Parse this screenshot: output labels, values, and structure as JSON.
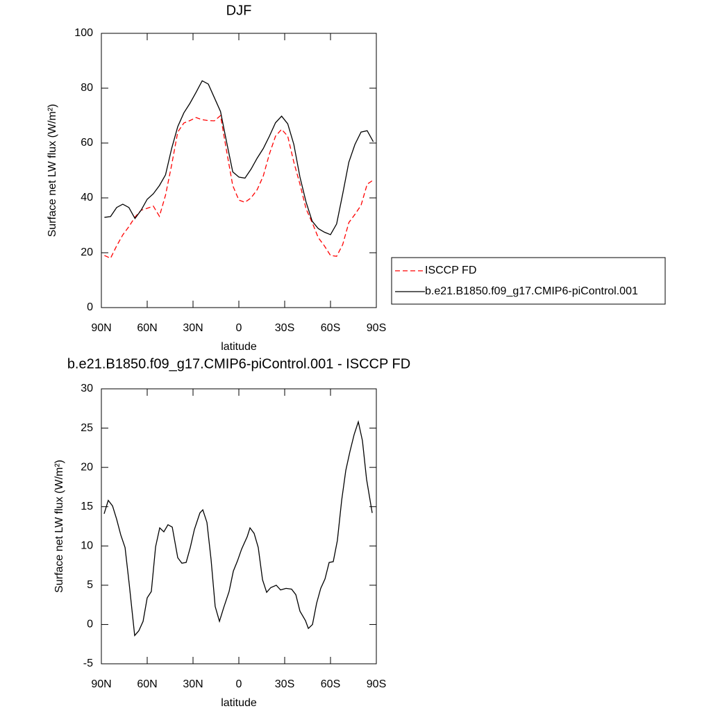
{
  "chart_data": [
    {
      "type": "line",
      "title": "DJF",
      "xlabel": "latitude",
      "ylabel": "Surface net LW flux (W/m²)",
      "x": [
        88,
        84,
        80,
        76,
        72,
        68,
        64,
        60,
        56,
        52,
        48,
        44,
        40,
        36,
        32,
        28,
        24,
        20,
        16,
        12,
        8,
        4,
        0,
        -4,
        -8,
        -12,
        -16,
        -20,
        -24,
        -28,
        -32,
        -36,
        -40,
        -44,
        -48,
        -52,
        -56,
        -60,
        -64,
        -68,
        -72,
        -76,
        -80,
        -84,
        -88
      ],
      "series": [
        {
          "name": "ISCCP FD",
          "color": "#ff0000",
          "style": "dashed",
          "values": [
            19,
            18,
            22.5,
            26.5,
            29.5,
            33,
            35.5,
            36.2,
            37,
            33.3,
            41,
            52,
            64,
            67.3,
            68.2,
            69.3,
            68.5,
            68.2,
            68.1,
            70,
            57,
            44.5,
            39.2,
            38.4,
            40,
            43,
            48,
            56,
            62.5,
            65,
            62.5,
            53,
            45,
            36,
            31,
            25.5,
            22.5,
            19,
            18.7,
            23,
            31,
            34,
            37.3,
            45,
            46.5
          ]
        },
        {
          "name": "b.e21.B1850.f09_g17.CMIP6-piControl.001",
          "color": "#000000",
          "style": "solid",
          "values": [
            32.9,
            33.2,
            36.5,
            37.7,
            36.5,
            32.5,
            35.5,
            39.5,
            41.5,
            44.5,
            48.4,
            58,
            66,
            71,
            74.5,
            78.5,
            82.7,
            81.5,
            76.5,
            71.5,
            60.3,
            49.5,
            47.6,
            47.2,
            50.5,
            54.5,
            58,
            62.5,
            67.4,
            69.8,
            67,
            59.5,
            47.6,
            38.5,
            31.5,
            28.8,
            27.5,
            26.6,
            30.5,
            41.5,
            53,
            59.5,
            64,
            64.5,
            60.5
          ]
        }
      ],
      "xlim": [
        90,
        -90
      ],
      "xticks": [
        {
          "value": 90,
          "label": "90N"
        },
        {
          "value": 60,
          "label": "60N"
        },
        {
          "value": 30,
          "label": "30N"
        },
        0,
        {
          "value": -30,
          "label": "30S"
        },
        {
          "value": -60,
          "label": "60S"
        },
        {
          "value": -90,
          "label": "90S"
        }
      ],
      "ylim": [
        0,
        100
      ],
      "yticks": [
        0,
        20,
        40,
        60,
        80,
        100
      ],
      "legend": "right"
    },
    {
      "type": "line",
      "title": "b.e21.B1850.f09_g17.CMIP6-piControl.001 - ISCCP FD",
      "xlabel": "latitude",
      "ylabel": "Surface net LW flux (W/m²)",
      "x": [
        88.2,
        85.5,
        82.7,
        80,
        77.3,
        74.5,
        71.8,
        68.2,
        65.5,
        62.7,
        60,
        57.3,
        54.5,
        51.8,
        49.1,
        46.4,
        43.6,
        40,
        37.3,
        34.5,
        31.8,
        29.1,
        25.5,
        23.6,
        20.9,
        18.2,
        15.5,
        12.7,
        10,
        6.4,
        3.6,
        0.9,
        -1.8,
        -5.5,
        -7.3,
        -10,
        -12.7,
        -15.5,
        -18.2,
        -20.9,
        -24.5,
        -27.3,
        -30.9,
        -34.5,
        -37.3,
        -40,
        -43.6,
        -45.5,
        -48.2,
        -50.9,
        -53.6,
        -56.4,
        -59.1,
        -61.8,
        -64.5,
        -67.3,
        -70,
        -72.7,
        -75.5,
        -78.2,
        -80.9,
        -83.6,
        -87.3
      ],
      "series": [
        {
          "color": "#000000",
          "style": "solid",
          "values": [
            14.1,
            15.8,
            15.1,
            13.4,
            11.4,
            9.8,
            5.2,
            -1.4,
            -0.8,
            0.4,
            3.4,
            4.2,
            9.9,
            12.3,
            11.8,
            12.7,
            12.4,
            8.5,
            7.8,
            7.9,
            9.8,
            12.1,
            14.2,
            14.6,
            13,
            8.3,
            2.3,
            0.4,
            2.1,
            4.2,
            6.8,
            8.1,
            9.6,
            11.2,
            12.3,
            11.6,
            9.8,
            5.7,
            4.1,
            4.7,
            5,
            4.4,
            4.6,
            4.5,
            3.8,
            1.7,
            0.5,
            -0.5,
            0,
            2.7,
            4.6,
            5.8,
            7.9,
            8,
            10.7,
            15.8,
            19.6,
            22,
            24.2,
            25.8,
            23.4,
            18.5,
            14.2
          ]
        }
      ],
      "xlim": [
        90,
        -90
      ],
      "xticks": [
        {
          "value": 90,
          "label": "90N"
        },
        {
          "value": 60,
          "label": "60N"
        },
        {
          "value": 30,
          "label": "30N"
        },
        0,
        {
          "value": -30,
          "label": "30S"
        },
        {
          "value": -60,
          "label": "60S"
        },
        {
          "value": -90,
          "label": "90S"
        }
      ],
      "ylim": [
        -5,
        30
      ],
      "yticks": [
        -5,
        0,
        5,
        10,
        15,
        20,
        25,
        30
      ]
    }
  ]
}
